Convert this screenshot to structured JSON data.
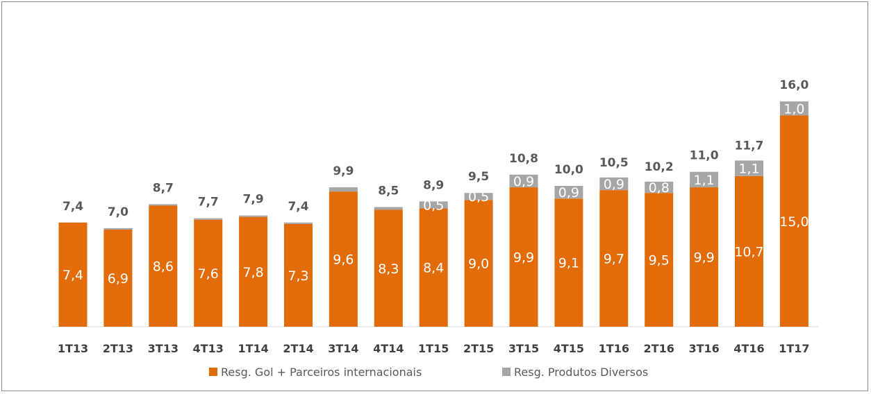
{
  "chart_data": {
    "type": "bar",
    "stacked": true,
    "categories": [
      "1T13",
      "2T13",
      "3T13",
      "4T13",
      "1T14",
      "2T14",
      "3T14",
      "4T14",
      "1T15",
      "2T15",
      "3T15",
      "4T15",
      "1T16",
      "2T16",
      "3T16",
      "4T16",
      "1T17"
    ],
    "series": [
      {
        "name": "Resg. Gol + Parceiros internacionais",
        "color": "#E36C0A",
        "values": [
          7.4,
          6.9,
          8.6,
          7.6,
          7.8,
          7.3,
          9.6,
          8.3,
          8.4,
          9.0,
          9.9,
          9.1,
          9.7,
          9.5,
          9.9,
          10.7,
          15.0
        ],
        "labels": [
          "7,4",
          "6,9",
          "8,6",
          "7,6",
          "7,8",
          "7,3",
          "9,6",
          "8,3",
          "8,4",
          "9,0",
          "9,9",
          "9,1",
          "9,7",
          "9,5",
          "9,9",
          "10,7",
          "15,0"
        ]
      },
      {
        "name": "Resg. Produtos Diversos",
        "color": "#A6A6A6",
        "values": [
          0.0,
          0.1,
          0.1,
          0.1,
          0.1,
          0.1,
          0.3,
          0.2,
          0.5,
          0.5,
          0.9,
          0.9,
          0.9,
          0.8,
          1.1,
          1.1,
          1.0
        ],
        "labels": [
          "",
          "",
          "",
          "",
          "",
          "",
          "",
          "",
          "0,5",
          "0,5",
          "0,9",
          "0,9",
          "0,9",
          "0,8",
          "1,1",
          "1,1",
          "1,0"
        ]
      }
    ],
    "totals": [
      7.4,
      7.0,
      8.7,
      7.7,
      7.9,
      7.4,
      9.9,
      8.5,
      8.9,
      9.5,
      10.8,
      10.0,
      10.5,
      10.2,
      11.0,
      11.7,
      16.0
    ],
    "total_labels": [
      "7,4",
      "7,0",
      "8,7",
      "7,7",
      "7,9",
      "7,4",
      "9,9",
      "8,5",
      "8,9",
      "9,5",
      "10,8",
      "10,0",
      "10,5",
      "10,2",
      "11,0",
      "11,7",
      "16,0"
    ],
    "ylim": [
      0,
      16
    ],
    "grid": false,
    "legend_position": "bottom"
  }
}
